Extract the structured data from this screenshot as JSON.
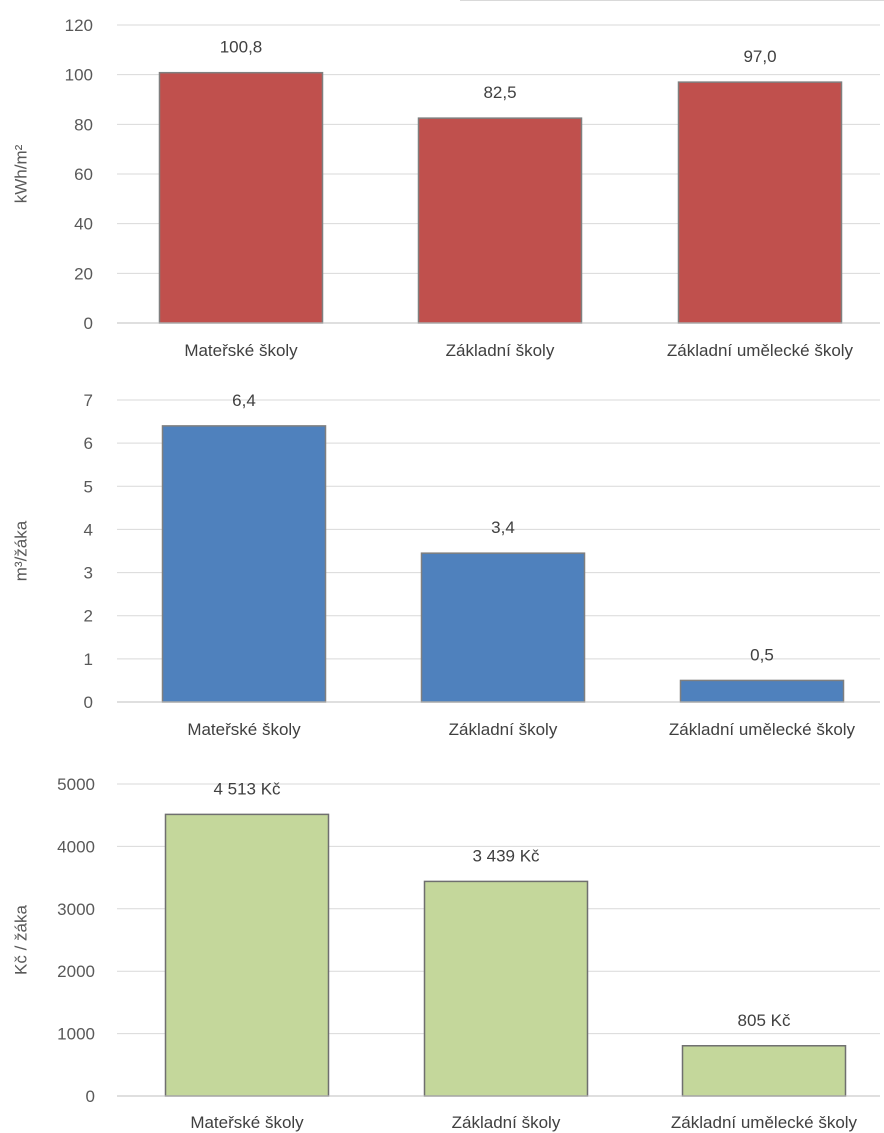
{
  "chart_data": [
    {
      "type": "bar",
      "categories": [
        "Mateřské školy",
        "Základní školy",
        "Základní umělecké školy"
      ],
      "values": [
        100.8,
        82.5,
        97.0
      ],
      "value_labels": [
        "100,8",
        "82,5",
        "97,0"
      ],
      "ylabel": "kWh/m²",
      "ylim": [
        0,
        120
      ],
      "yticks": [
        0,
        20,
        40,
        60,
        80,
        100,
        120
      ],
      "grid": true,
      "legend": "none",
      "color": "#c0504d"
    },
    {
      "type": "bar",
      "categories": [
        "Mateřské školy",
        "Základní školy",
        "Základní umělecké školy"
      ],
      "values": [
        6.4,
        3.45,
        0.5
      ],
      "value_labels": [
        "6,4",
        "3,4",
        "0,5"
      ],
      "ylabel": "m³/žáka",
      "ylim": [
        0,
        7
      ],
      "yticks": [
        0,
        1,
        2,
        3,
        4,
        5,
        6,
        7
      ],
      "grid": true,
      "legend": "none",
      "color": "#4f81bd"
    },
    {
      "type": "bar",
      "categories": [
        "Mateřské školy",
        "Základní školy",
        "Základní umělecké školy"
      ],
      "values": [
        4513,
        3439,
        805
      ],
      "value_labels": [
        "4 513 Kč",
        "3 439 Kč",
        "805 Kč"
      ],
      "ylabel": "Kč / žáka",
      "ylim": [
        0,
        5000
      ],
      "yticks": [
        0,
        1000,
        2000,
        3000,
        4000,
        5000
      ],
      "grid": true,
      "legend": "none",
      "color": "#c4d79b"
    }
  ]
}
